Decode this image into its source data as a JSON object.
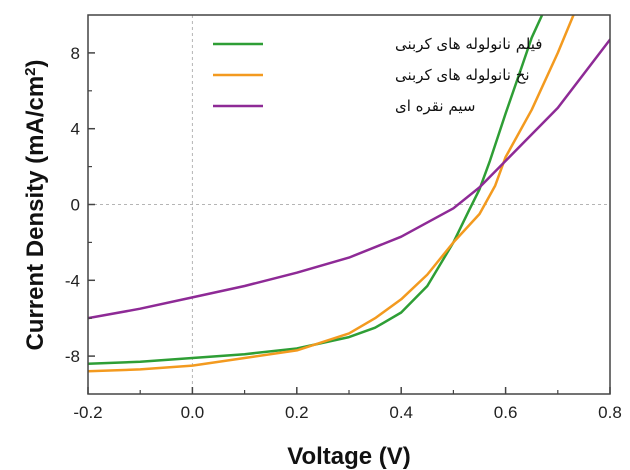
{
  "chart_data": {
    "type": "line",
    "title": "",
    "xlabel": "Voltage (V)",
    "ylabel_main": "Current Density (mA/cm",
    "ylabel_sup": "2",
    "ylabel_close": ")",
    "xlim": [
      -0.2,
      0.8
    ],
    "ylim": [
      -10,
      10
    ],
    "xticks": [
      -0.2,
      0.0,
      0.2,
      0.4,
      0.6,
      0.8
    ],
    "xtick_labels": [
      "-0.2",
      "0.0",
      "0.2",
      "0.4",
      "0.6",
      "0.8"
    ],
    "yticks": [
      -8,
      -4,
      0,
      4,
      8
    ],
    "ytick_labels": [
      "-8",
      "-4",
      "0",
      "4",
      "8"
    ],
    "grid": false,
    "reference_lines": {
      "x": 0,
      "y": 0
    },
    "legend_position": "top",
    "series": [
      {
        "name": "فیلم نانولوله های کربنی",
        "color": "#2e9e35",
        "x": [
          -0.2,
          -0.1,
          0.0,
          0.1,
          0.2,
          0.3,
          0.35,
          0.4,
          0.45,
          0.5,
          0.53,
          0.55,
          0.57,
          0.6,
          0.63,
          0.65,
          0.67
        ],
        "y": [
          -8.4,
          -8.3,
          -8.1,
          -7.9,
          -7.6,
          -7.0,
          -6.5,
          -5.7,
          -4.3,
          -2.0,
          -0.3,
          0.8,
          2.3,
          4.8,
          7.2,
          8.8,
          10.0
        ]
      },
      {
        "name": "نخ نانولوله های کربنی",
        "color": "#f39a1f",
        "x": [
          -0.2,
          -0.1,
          0.0,
          0.1,
          0.2,
          0.3,
          0.35,
          0.4,
          0.45,
          0.5,
          0.55,
          0.58,
          0.6,
          0.65,
          0.7,
          0.73
        ],
        "y": [
          -8.8,
          -8.7,
          -8.5,
          -8.1,
          -7.7,
          -6.8,
          -6.0,
          -5.0,
          -3.7,
          -2.0,
          -0.5,
          1.0,
          2.5,
          5.0,
          8.0,
          10.0
        ]
      },
      {
        "name": "سیم نقره ای",
        "color": "#8e2a96",
        "x": [
          -0.2,
          -0.1,
          0.0,
          0.1,
          0.2,
          0.3,
          0.4,
          0.5,
          0.55,
          0.6,
          0.65,
          0.7,
          0.75,
          0.8
        ],
        "y": [
          -6.0,
          -5.5,
          -4.9,
          -4.3,
          -3.6,
          -2.8,
          -1.7,
          -0.2,
          0.9,
          2.3,
          3.7,
          5.1,
          6.9,
          8.7
        ]
      }
    ]
  }
}
